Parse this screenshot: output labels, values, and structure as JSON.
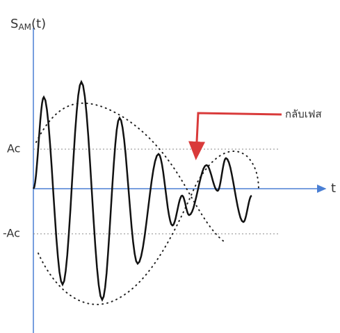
{
  "axes": {
    "y_label_main": "S",
    "y_label_sub": "AM",
    "y_label_tail": "(t)",
    "x_label": "t"
  },
  "levels": {
    "upper": "Ac",
    "lower": "-Ac"
  },
  "annotation": {
    "label": "กลับเฟส"
  }
}
